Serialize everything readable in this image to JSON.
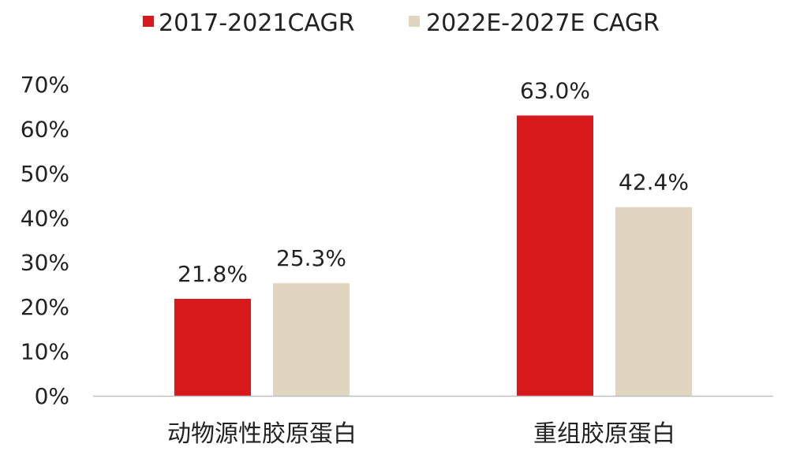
{
  "chart_data": {
    "type": "bar",
    "categories": [
      "动物源性胶原蛋白",
      "重组胶原蛋白"
    ],
    "series": [
      {
        "name": "2017-2021CAGR",
        "values": [
          21.8,
          63.0
        ],
        "labels": [
          "21.8%",
          "63.0%"
        ],
        "color": "#D7191C"
      },
      {
        "name": "2022E-2027E CAGR",
        "values": [
          25.3,
          42.4
        ],
        "labels": [
          "25.3%",
          "42.4%"
        ],
        "color": "#E0D5C1"
      }
    ],
    "y_ticks": [
      0,
      10,
      20,
      30,
      40,
      50,
      60,
      70
    ],
    "y_tick_labels": [
      "0%",
      "10%",
      "20%",
      "30%",
      "40%",
      "50%",
      "60%",
      "70%"
    ],
    "ylim": [
      0,
      70
    ],
    "legend_position": "top-center",
    "grid": false,
    "axis_color": "#BFBFBF"
  }
}
